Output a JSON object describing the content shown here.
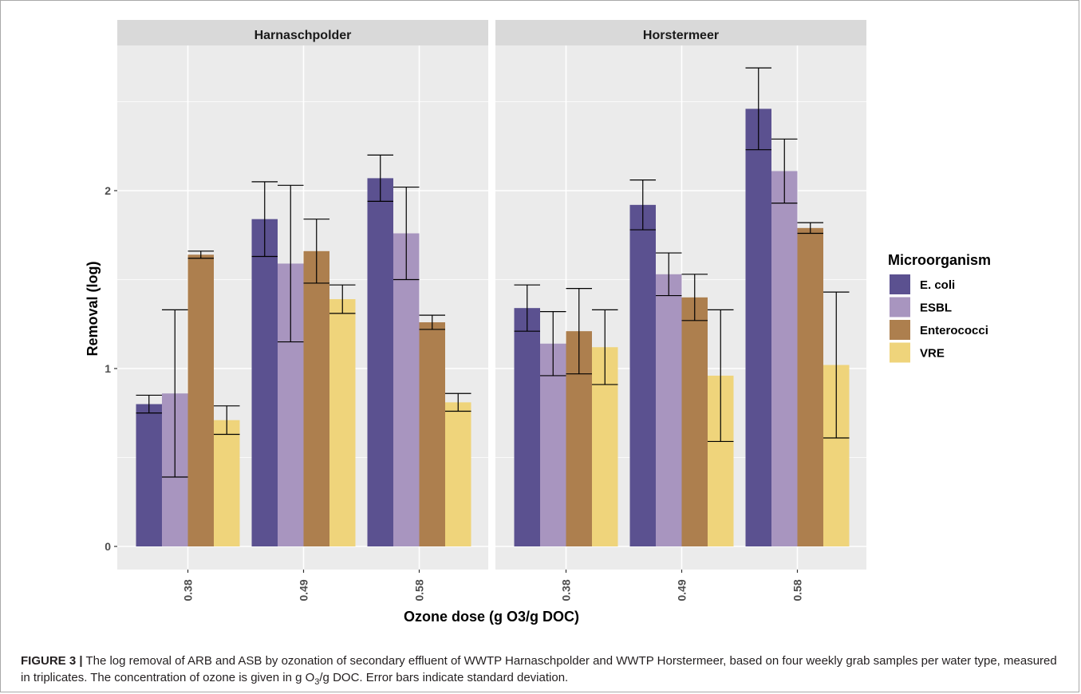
{
  "chart_data": {
    "type": "bar",
    "facets": [
      "Harnaschpolder",
      "Horstermeer"
    ],
    "categories": [
      "0.38",
      "0.49",
      "0.58"
    ],
    "xlabel": "Ozone dose (g O3/g DOC)",
    "ylabel": "Removal (log)",
    "ylim": [
      -0.13,
      2.8
    ],
    "yticks": [
      0,
      1,
      2
    ],
    "grid": true,
    "legend_title": "Microorganism",
    "legend_position": "right",
    "series": [
      {
        "name": "E. coli",
        "color": "#5b5190",
        "values": {
          "Harnaschpolder": [
            0.8,
            1.84,
            2.07
          ],
          "Horstermeer": [
            1.34,
            1.92,
            2.46
          ]
        },
        "error": {
          "Harnaschpolder": [
            0.05,
            0.21,
            0.13
          ],
          "Horstermeer": [
            0.13,
            0.14,
            0.23
          ]
        }
      },
      {
        "name": "ESBL",
        "color": "#a895bf",
        "values": {
          "Harnaschpolder": [
            0.86,
            1.59,
            1.76
          ],
          "Horstermeer": [
            1.14,
            1.53,
            2.11
          ]
        },
        "error": {
          "Harnaschpolder": [
            0.47,
            0.44,
            0.26
          ],
          "Horstermeer": [
            0.18,
            0.12,
            0.18
          ]
        }
      },
      {
        "name": "Enterococci",
        "color": "#ad7f4e",
        "values": {
          "Harnaschpolder": [
            1.64,
            1.66,
            1.26
          ],
          "Horstermeer": [
            1.21,
            1.4,
            1.79
          ]
        },
        "error": {
          "Harnaschpolder": [
            0.02,
            0.18,
            0.04
          ],
          "Horstermeer": [
            0.24,
            0.13,
            0.03
          ]
        }
      },
      {
        "name": "VRE",
        "color": "#efd47b",
        "values": {
          "Harnaschpolder": [
            0.71,
            1.39,
            0.81
          ],
          "Horstermeer": [
            1.12,
            0.96,
            1.02
          ]
        },
        "error": {
          "Harnaschpolder": [
            0.08,
            0.08,
            0.05
          ],
          "Horstermeer": [
            0.21,
            0.37,
            0.41
          ]
        }
      }
    ]
  },
  "caption": {
    "lead": "FIGURE 3 |",
    "text_part1": " The log removal of ARB and ASB by ozonation of secondary effluent of WWTP Harnaschpolder and WWTP Horstermeer, based on four weekly grab samples per water type, measured in triplicates. The concentration of ozone is given in g O",
    "sub1": "3",
    "text_part2": "/g DOC. Error bars indicate standard deviation."
  }
}
